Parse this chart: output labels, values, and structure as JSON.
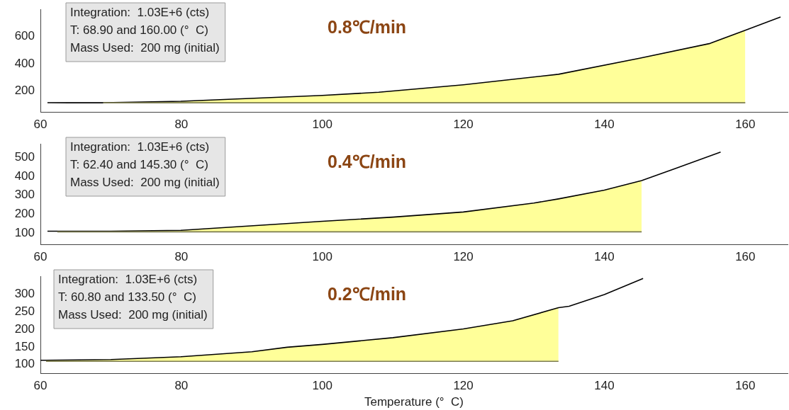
{
  "chart_data": [
    {
      "type": "line",
      "xlim": [
        60,
        166
      ],
      "ylim": [
        45,
        800
      ],
      "xticks": [
        60,
        80,
        100,
        120,
        140,
        160
      ],
      "yticks": [
        200,
        400,
        600
      ],
      "grid": false,
      "legend": false,
      "series": [
        {
          "type": "area",
          "color": "#ffff99",
          "x": [
            68.9,
            80,
            100,
            108,
            120,
            133.5,
            145,
            155,
            160
          ],
          "values": [
            115,
            126,
            169,
            192,
            247,
            324,
            441,
            550,
            647
          ]
        },
        {
          "color": "#7a7a50",
          "x": [
            68.9,
            160
          ],
          "values": [
            115,
            115
          ]
        },
        {
          "color": "#000000",
          "x": [
            61,
            64,
            68.9,
            80,
            100,
            108,
            120,
            133.5,
            145,
            155,
            160,
            165
          ],
          "values": [
            116,
            115,
            115,
            126,
            169,
            192,
            247,
            324,
            441,
            550,
            647,
            744
          ]
        }
      ],
      "annotations": [
        "Integration:  1.03E+6 (cts)\nT: 68.90 and 160.00 (°  C)\nMass Used:  200 mg (initial)",
        "0.8℃/min"
      ]
    },
    {
      "type": "line",
      "xlim": [
        60,
        166
      ],
      "ylim": [
        40,
        570
      ],
      "xticks": [
        60,
        80,
        100,
        120,
        140,
        160
      ],
      "yticks": [
        100,
        200,
        300,
        400,
        500
      ],
      "grid": false,
      "legend": false,
      "series": [
        {
          "type": "area",
          "color": "#ffff99",
          "x": [
            62.4,
            80,
            100,
            110,
            120,
            130,
            133.5,
            140,
            145.3
          ],
          "values": [
            111,
            116,
            163,
            185,
            212,
            259,
            281,
            327,
            377
          ]
        },
        {
          "color": "#7a7a50",
          "x": [
            62.4,
            145.3
          ],
          "values": [
            108,
            108
          ]
        },
        {
          "color": "#000000",
          "x": [
            61,
            62.4,
            70,
            80,
            100,
            110,
            120,
            130,
            133.5,
            140,
            145.3,
            150,
            156.5
          ],
          "values": [
            111,
            111,
            111,
            116,
            163,
            185,
            212,
            259,
            281,
            327,
            377,
            440,
            527
          ]
        }
      ],
      "annotations": [
        "Integration:  1.03E+6 (cts)\nT: 62.40 and 145.30 (°  C)\nMass Used:  200 mg (initial)",
        "0.4℃/min"
      ]
    },
    {
      "type": "line",
      "xlim": [
        60,
        166
      ],
      "ylim": [
        75,
        350
      ],
      "xticks": [
        60,
        80,
        100,
        120,
        140,
        160
      ],
      "yticks": [
        100,
        150,
        200,
        250,
        300
      ],
      "grid": false,
      "legend": false,
      "xlabel": "Temperature (°  C)",
      "series": [
        {
          "type": "area",
          "color": "#ffff99",
          "x": [
            60.8,
            70,
            80,
            90,
            95,
            100,
            110,
            120,
            127,
            133.5
          ],
          "values": [
            112,
            114,
            122,
            136,
            149,
            157,
            176,
            201,
            224,
            261
          ]
        },
        {
          "color": "#7a7a50",
          "x": [
            60.8,
            133.5
          ],
          "values": [
            109,
            109
          ]
        },
        {
          "color": "#000000",
          "x": [
            60,
            60.8,
            70,
            80,
            90,
            95,
            100,
            110,
            120,
            127,
            133.5,
            135,
            140,
            145.5
          ],
          "values": [
            112,
            112,
            114,
            122,
            136,
            149,
            157,
            176,
            201,
            224,
            261,
            265,
            298,
            344
          ]
        }
      ],
      "annotations": [
        "Integration:  1.03E+6 (cts)\nT: 60.80 and 133.50 (°  C)\nMass Used:  200 mg (initial)",
        "0.2℃/min"
      ]
    }
  ]
}
